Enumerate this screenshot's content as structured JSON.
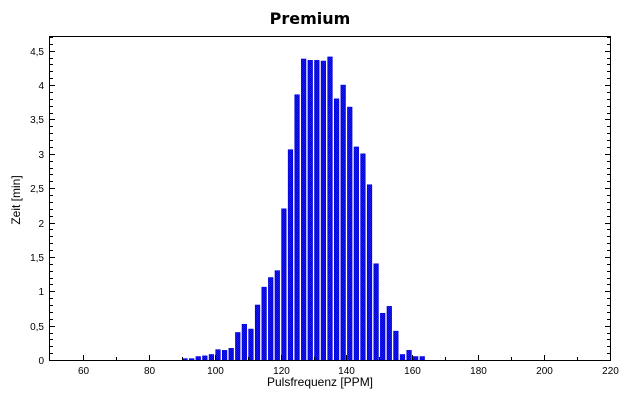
{
  "chart_data": {
    "type": "bar",
    "title": "Premium",
    "xlabel": "Pulsfrequenz [PPM]",
    "ylabel": "Zeit [min]",
    "xlim": [
      50,
      220
    ],
    "ylim": [
      0,
      4.7
    ],
    "xticks": [
      60,
      80,
      100,
      120,
      140,
      160,
      180,
      200,
      220
    ],
    "yticks": [
      0,
      0.5,
      1,
      1.5,
      2,
      2.5,
      3,
      3.5,
      4,
      4.5
    ],
    "ytick_labels": [
      "0",
      "0,5",
      "1",
      "1,5",
      "2",
      "2,5",
      "3",
      "3,5",
      "4",
      "4,5"
    ],
    "grid": false,
    "bar_color": "#0000e0",
    "x": [
      91,
      93,
      95,
      97,
      99,
      101,
      103,
      105,
      107,
      109,
      111,
      113,
      115,
      117,
      119,
      121,
      123,
      125,
      127,
      129,
      131,
      133,
      135,
      137,
      139,
      141,
      143,
      145,
      147,
      149,
      151,
      153,
      155,
      157,
      159,
      161,
      163,
      165
    ],
    "values": [
      0.02,
      0.02,
      0.05,
      0.06,
      0.08,
      0.15,
      0.14,
      0.17,
      0.4,
      0.52,
      0.45,
      0.8,
      1.06,
      1.2,
      1.3,
      2.2,
      3.06,
      3.86,
      4.38,
      4.36,
      4.36,
      4.35,
      4.41,
      3.8,
      4.0,
      3.68,
      3.1,
      3.0,
      2.55,
      1.4,
      0.68,
      0.78,
      0.42,
      0.08,
      0.14,
      0.05,
      0.05,
      0.0
    ]
  }
}
